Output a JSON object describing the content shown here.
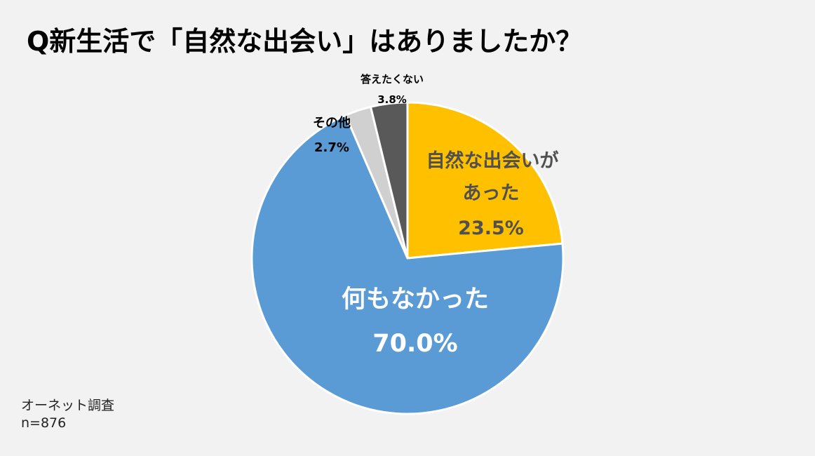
{
  "title": "Q新生活で「自然な出会い」はありましたか？",
  "source": {
    "line1": "オーネット調査",
    "line2": "n=876"
  },
  "chart_data": {
    "type": "pie",
    "start_angle_deg": 0,
    "direction": "clockwise",
    "slices": [
      {
        "label_lines": [
          "自然な出会いが",
          "あった"
        ],
        "value": 23.5,
        "value_label": "23.5%",
        "color": "#ffc000",
        "text_color": "#505050"
      },
      {
        "label_lines": [
          "何もなかった"
        ],
        "value": 70.0,
        "value_label": "70.0%",
        "color": "#5b9bd5",
        "text_color": "#ffffff"
      },
      {
        "label_lines": [
          "その他"
        ],
        "value": 2.7,
        "value_label": "2.7%",
        "color": "#d0d0d0",
        "text_color": "#000000"
      },
      {
        "label_lines": [
          "答えたくない"
        ],
        "value": 3.8,
        "value_label": "3.8%",
        "color": "#595959",
        "text_color": "#000000"
      }
    ]
  }
}
